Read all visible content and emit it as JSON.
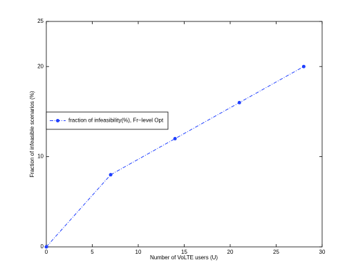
{
  "chart_data": {
    "type": "line",
    "xlabel": "Number of VoLTE users (U)",
    "ylabel": "Fraction of infeasible scenarios (%)",
    "x": [
      0,
      7,
      14,
      21,
      28
    ],
    "series": [
      {
        "name": "fraction of infeasibility(%), Fr−level Opt",
        "color": "#1f3fff",
        "values": [
          0,
          8,
          12,
          16,
          20
        ]
      }
    ],
    "xlim": [
      0,
      30
    ],
    "xticks": [
      0,
      5,
      10,
      15,
      20,
      25,
      30
    ],
    "ylim": [
      0,
      25
    ],
    "yticks": [
      0,
      10,
      20,
      25
    ],
    "legend": "left"
  }
}
